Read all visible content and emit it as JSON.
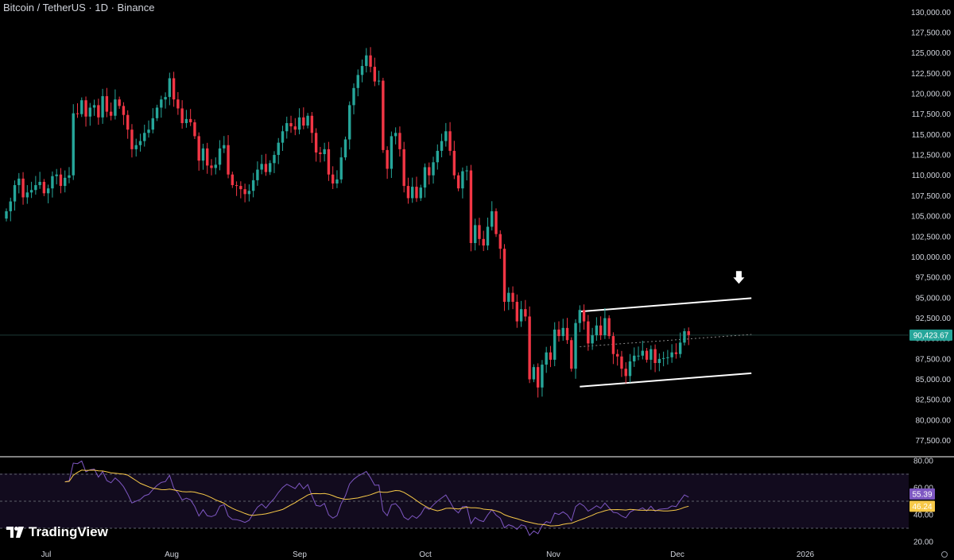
{
  "header": {
    "title": "Bitcoin / TetherUS · 1D · Binance"
  },
  "branding": {
    "name": "TradingView"
  },
  "colors": {
    "up": "#26a69a",
    "down": "#f23645",
    "rsi": "#7e57c2",
    "rsi_ma": "#f7c948",
    "background": "#000000"
  },
  "chart_data": [
    {
      "type": "candlestick",
      "pane": "price",
      "ylim": [
        76000,
        131000
      ],
      "y_ticks": [
        77500,
        80000,
        82500,
        85000,
        87500,
        90000,
        92500,
        95000,
        97500,
        100000,
        102500,
        105000,
        107500,
        110000,
        112500,
        115000,
        117500,
        120000,
        122500,
        125000,
        127500,
        130000
      ],
      "y_tick_labels": [
        "77,500.00",
        "80,000.00",
        "82,500.00",
        "85,000.00",
        "87,500.00",
        "90,000.00",
        "92,500.00",
        "95,000.00",
        "97,500.00",
        "100,000.00",
        "102,500.00",
        "105,000.00",
        "107,500.00",
        "110,000.00",
        "112,500.00",
        "115,000.00",
        "117,500.00",
        "120,000.00",
        "122,500.00",
        "125,000.00",
        "127,500.00",
        "130,000.00"
      ],
      "x_labels": [
        "Jul",
        "Aug",
        "Sep",
        "Oct",
        "Nov",
        "Dec",
        "2026"
      ],
      "close_series": [
        105600,
        106800,
        108800,
        109600,
        107300,
        107900,
        108200,
        108800,
        109200,
        107800,
        108400,
        109900,
        110100,
        108700,
        109700,
        110000,
        117600,
        117500,
        119200,
        117200,
        118300,
        118600,
        117100,
        119700,
        117800,
        117300,
        119300,
        118500,
        117400,
        115600,
        113200,
        113700,
        114200,
        115200,
        115600,
        117000,
        118300,
        119300,
        119600,
        121900,
        119300,
        118200,
        116400,
        116900,
        116500,
        114800,
        111800,
        113300,
        111200,
        110900,
        111300,
        113300,
        113700,
        110100,
        108800,
        108700,
        108300,
        107700,
        108100,
        109400,
        110700,
        111400,
        110400,
        111500,
        112500,
        114000,
        115400,
        116400,
        116000,
        115600,
        117100,
        116100,
        117300,
        115200,
        112800,
        112600,
        113200,
        110100,
        109000,
        109500,
        112200,
        114400,
        118600,
        120700,
        122300,
        123400,
        124700,
        123300,
        121500,
        121600,
        113100,
        110800,
        114800,
        115200,
        113200,
        108700,
        107200,
        108600,
        107200,
        108500,
        111000,
        110000,
        111600,
        113000,
        114200,
        115400,
        113000,
        110000,
        108400,
        110500,
        110600,
        101700,
        103900,
        102200,
        101400,
        103700,
        105600,
        102800,
        101000,
        94500,
        95600,
        94500,
        92100,
        93600,
        92700,
        85000,
        86500,
        84000,
        86800,
        88300,
        87400,
        91100,
        90300,
        91300,
        89800,
        86300,
        91900,
        93500,
        92100,
        89400,
        90400,
        91600,
        90400,
        92500,
        90300,
        88100,
        87800,
        86300,
        85400,
        87200,
        87900,
        87900,
        88500,
        87400,
        88700,
        87000,
        87500,
        87600,
        87700,
        88300,
        88100,
        89500,
        90900,
        90424
      ],
      "last_price": 90423.67,
      "last_price_label": "90,423.67",
      "annotations": [
        {
          "type": "line",
          "from_bar": 137,
          "from_price": 93300,
          "to_bar": 178,
          "to_price": 94950,
          "color": "#ffffff"
        },
        {
          "type": "line",
          "from_bar": 137,
          "from_price": 84100,
          "to_bar": 178,
          "to_price": 85750,
          "color": "#ffffff"
        },
        {
          "type": "line",
          "from_bar": 137,
          "from_price": 89000,
          "to_bar": 178,
          "to_price": 90500,
          "color": "#888888",
          "style": "dotted"
        },
        {
          "type": "arrow-down",
          "at_bar": 175,
          "at_price": 97300,
          "color": "#ffffff"
        }
      ]
    },
    {
      "type": "line",
      "pane": "rsi",
      "ylim": [
        20,
        80
      ],
      "y_ticks": [
        20,
        40,
        60,
        80
      ],
      "y_tick_labels": [
        "20.00",
        "40.00",
        "60.00",
        "80.00"
      ],
      "bands": [
        30,
        50,
        70
      ],
      "rsi_value": 55.39,
      "rsi_label": "55.39",
      "ma_value": 46.24,
      "ma_label": "46.24"
    }
  ]
}
